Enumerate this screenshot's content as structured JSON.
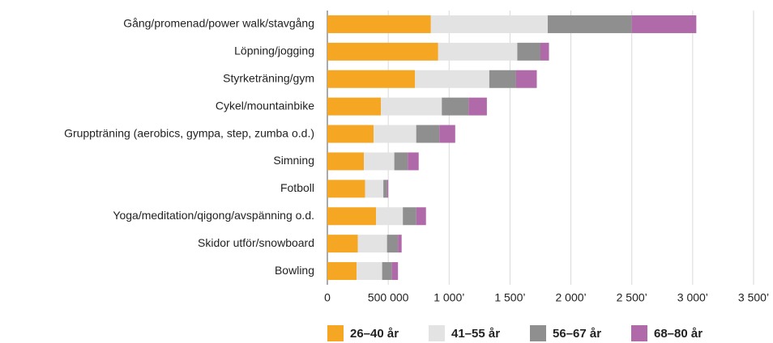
{
  "chart_data": {
    "type": "stacked_hbar",
    "categories": [
      "Gång/promenad/power walk/stavgång",
      "Löpning/jogging",
      "Styrketräning/gym",
      "Cykel/mountainbike",
      "Gruppträning (aerobics, gympa, step, zumba o.d.)",
      "Simning",
      "Fotboll",
      "Yoga/meditation/qigong/avspänning o.d.",
      "Skidor utför/snowboard",
      "Bowling"
    ],
    "series": [
      {
        "name": "26–40 år",
        "color": "#f5a623",
        "values": [
          850000,
          910000,
          720000,
          440000,
          380000,
          300000,
          310000,
          400000,
          250000,
          240000
        ]
      },
      {
        "name": "41–55 år",
        "color": "#e3e3e3",
        "values": [
          960000,
          650000,
          610000,
          500000,
          350000,
          250000,
          150000,
          220000,
          240000,
          210000
        ]
      },
      {
        "name": "56–67 år",
        "color": "#8f8f8f",
        "values": [
          690000,
          190000,
          220000,
          220000,
          190000,
          110000,
          30000,
          110000,
          90000,
          80000
        ]
      },
      {
        "name": "68–80 år",
        "color": "#b16aa9",
        "values": [
          530000,
          70000,
          170000,
          150000,
          130000,
          90000,
          10000,
          80000,
          30000,
          50000
        ]
      }
    ],
    "xlim": [
      0,
      3500000
    ],
    "xticks": [
      0,
      {
        "value": 500000,
        "label": "500 000"
      },
      {
        "value": 1000000,
        "label": "1 000’"
      },
      {
        "value": 1500000,
        "label": "1 500’"
      },
      {
        "value": 2000000,
        "label": "2 000’"
      },
      {
        "value": 2500000,
        "label": "2 500’"
      },
      {
        "value": 3000000,
        "label": "3 000’"
      },
      {
        "value": 3500000,
        "label": "3 500’"
      }
    ],
    "grid": true,
    "legend": "bottom"
  }
}
